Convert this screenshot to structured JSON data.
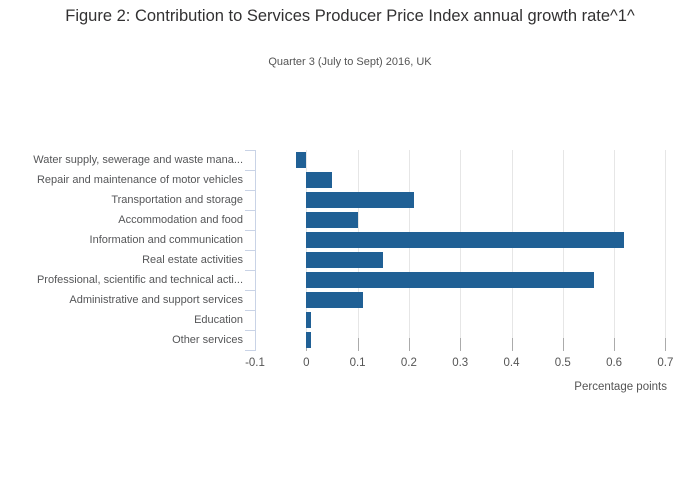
{
  "chart_data": {
    "type": "bar",
    "orientation": "horizontal",
    "title": "Figure 2: Contribution to Services Producer Price Index annual growth rate^1^",
    "subtitle": "Quarter 3 (July to Sept) 2016, UK",
    "categories": [
      "Water supply, sewerage and waste mana...",
      "Repair and maintenance of motor vehicles",
      "Transportation and storage",
      "Accommodation and food",
      "Information and communication",
      "Real estate activities",
      "Professional, scientific and technical acti...",
      "Administrative and support services",
      "Education",
      "Other services"
    ],
    "values": [
      -0.02,
      0.05,
      0.21,
      0.1,
      0.62,
      0.15,
      0.56,
      0.11,
      0.01,
      0.01
    ],
    "xlabel": "Percentage points",
    "xlim": [
      -0.1,
      0.715
    ],
    "x_tick_values": [
      -0.1,
      0,
      0.1,
      0.2,
      0.3,
      0.4,
      0.5,
      0.6,
      0.7
    ],
    "x_tick_labels": [
      "-0.1",
      "0",
      "0.1",
      "0.2",
      "0.3",
      "0.4",
      "0.5",
      "0.6",
      "0.7"
    ],
    "grid": true,
    "legend": "none",
    "bar_color": "#206095",
    "category_axis_color": "#c9d3e6",
    "grid_color": "#e6e6e6",
    "tick_color": "#ababab",
    "title_color": "#323132",
    "text_color": "#555555"
  }
}
